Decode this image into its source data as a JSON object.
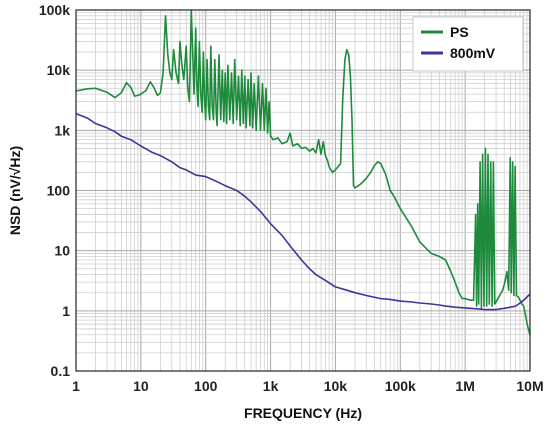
{
  "chart_data": {
    "type": "line",
    "title": "",
    "xlabel": "FREQUENCY (Hz)",
    "ylabel": "NSD (nV/√Hz)",
    "x_scale": "log",
    "y_scale": "log",
    "xlim": [
      1,
      10000000
    ],
    "ylim": [
      0.1,
      100000
    ],
    "x_ticks": [
      {
        "value": 1,
        "label": "1"
      },
      {
        "value": 10,
        "label": "10"
      },
      {
        "value": 100,
        "label": "100"
      },
      {
        "value": 1000,
        "label": "1k"
      },
      {
        "value": 10000,
        "label": "10k"
      },
      {
        "value": 100000,
        "label": "100k"
      },
      {
        "value": 1000000,
        "label": "1M"
      },
      {
        "value": 10000000,
        "label": "10M"
      }
    ],
    "y_ticks": [
      {
        "value": 0.1,
        "label": "0.1"
      },
      {
        "value": 1,
        "label": "1"
      },
      {
        "value": 10,
        "label": "10"
      },
      {
        "value": 100,
        "label": "100"
      },
      {
        "value": 1000,
        "label": "1k"
      },
      {
        "value": 10000,
        "label": "10k"
      },
      {
        "value": 100000,
        "label": "100k"
      }
    ],
    "grid": true,
    "legend_position": "top-right",
    "series": [
      {
        "name": "PS",
        "color": "#1e8a3c",
        "points": [
          [
            1,
            4500
          ],
          [
            1.5,
            4900
          ],
          [
            2,
            5000
          ],
          [
            3,
            4300
          ],
          [
            4,
            3500
          ],
          [
            5,
            4200
          ],
          [
            6,
            6200
          ],
          [
            7,
            5200
          ],
          [
            8,
            3700
          ],
          [
            9,
            3800
          ],
          [
            10,
            4000
          ],
          [
            12,
            4600
          ],
          [
            14,
            6400
          ],
          [
            16,
            5100
          ],
          [
            18,
            3800
          ],
          [
            20,
            4200
          ],
          [
            22,
            9000
          ],
          [
            24,
            80000
          ],
          [
            26,
            18000
          ],
          [
            28,
            9000
          ],
          [
            30,
            7000
          ],
          [
            32,
            22000
          ],
          [
            35,
            9000
          ],
          [
            38,
            6000
          ],
          [
            40,
            30000
          ],
          [
            43,
            12000
          ],
          [
            46,
            7000
          ],
          [
            50,
            25000
          ],
          [
            53,
            5000
          ],
          [
            56,
            3000
          ],
          [
            60,
            100000
          ],
          [
            63,
            20000
          ],
          [
            66,
            4000
          ],
          [
            70,
            50000
          ],
          [
            73,
            6000
          ],
          [
            76,
            2500
          ],
          [
            80,
            30000
          ],
          [
            84,
            4000
          ],
          [
            88,
            2000
          ],
          [
            92,
            20000
          ],
          [
            96,
            3000
          ],
          [
            100,
            1500
          ],
          [
            105,
            15000
          ],
          [
            110,
            2500
          ],
          [
            115,
            1500
          ],
          [
            120,
            25000
          ],
          [
            126,
            2500
          ],
          [
            132,
            1500
          ],
          [
            138,
            15000
          ],
          [
            145,
            2000
          ],
          [
            150,
            1200
          ],
          [
            160,
            18000
          ],
          [
            170,
            1500
          ],
          [
            180,
            10000
          ],
          [
            190,
            1400
          ],
          [
            200,
            9000
          ],
          [
            210,
            1300
          ],
          [
            220,
            12000
          ],
          [
            235,
            1500
          ],
          [
            250,
            9000
          ],
          [
            265,
            1300
          ],
          [
            280,
            15000
          ],
          [
            300,
            1500
          ],
          [
            320,
            8000
          ],
          [
            340,
            1200
          ],
          [
            360,
            10000
          ],
          [
            380,
            1300
          ],
          [
            400,
            8000
          ],
          [
            420,
            1100
          ],
          [
            450,
            7000
          ],
          [
            480,
            1200
          ],
          [
            500,
            9000
          ],
          [
            530,
            1100
          ],
          [
            560,
            6000
          ],
          [
            600,
            1000
          ],
          [
            650,
            8000
          ],
          [
            700,
            1000
          ],
          [
            750,
            6000
          ],
          [
            800,
            1000
          ],
          [
            850,
            5000
          ],
          [
            900,
            900
          ],
          [
            950,
            3000
          ],
          [
            1000,
            800
          ],
          [
            1100,
            700
          ],
          [
            1300,
            750
          ],
          [
            1500,
            600
          ],
          [
            1800,
            650
          ],
          [
            2000,
            900
          ],
          [
            2200,
            550
          ],
          [
            2600,
            600
          ],
          [
            3000,
            500
          ],
          [
            3500,
            520
          ],
          [
            4000,
            450
          ],
          [
            4500,
            500
          ],
          [
            5000,
            420
          ],
          [
            5500,
            700
          ],
          [
            6000,
            400
          ],
          [
            6500,
            650
          ],
          [
            7000,
            380
          ],
          [
            7500,
            320
          ],
          [
            8000,
            250
          ],
          [
            8500,
            220
          ],
          [
            9000,
            200
          ],
          [
            10000,
            220
          ],
          [
            11000,
            250
          ],
          [
            12000,
            280
          ],
          [
            13000,
            3500
          ],
          [
            14000,
            15000
          ],
          [
            15000,
            22000
          ],
          [
            16000,
            18000
          ],
          [
            17000,
            8000
          ],
          [
            18000,
            1500
          ],
          [
            19000,
            120
          ],
          [
            20000,
            110
          ],
          [
            25000,
            130
          ],
          [
            30000,
            160
          ],
          [
            35000,
            200
          ],
          [
            40000,
            260
          ],
          [
            45000,
            300
          ],
          [
            50000,
            280
          ],
          [
            60000,
            180
          ],
          [
            70000,
            100
          ],
          [
            80000,
            80
          ],
          [
            100000,
            50
          ],
          [
            150000,
            25
          ],
          [
            200000,
            14
          ],
          [
            300000,
            9
          ],
          [
            400000,
            8
          ],
          [
            500000,
            7
          ],
          [
            600000,
            4.5
          ],
          [
            700000,
            3
          ],
          [
            800000,
            2
          ],
          [
            900000,
            1.6
          ],
          [
            1000000,
            1.6
          ],
          [
            1200000,
            1.5
          ],
          [
            1350000,
            1.5
          ],
          [
            1450000,
            40
          ],
          [
            1500000,
            1.2
          ],
          [
            1560000,
            60
          ],
          [
            1620000,
            1.3
          ],
          [
            1700000,
            300
          ],
          [
            1780000,
            1.1
          ],
          [
            1860000,
            400
          ],
          [
            1950000,
            1.2
          ],
          [
            2050000,
            500
          ],
          [
            2150000,
            1.2
          ],
          [
            2250000,
            400
          ],
          [
            2360000,
            1.3
          ],
          [
            2480000,
            300
          ],
          [
            2600000,
            1.2
          ],
          [
            2730000,
            300
          ],
          [
            2860000,
            1.3
          ],
          [
            3000000,
            1.4
          ],
          [
            3200000,
            1.6
          ],
          [
            3500000,
            1.9
          ],
          [
            3800000,
            2.2
          ],
          [
            4100000,
            3
          ],
          [
            4400000,
            4.5
          ],
          [
            4700000,
            2.2
          ],
          [
            4950000,
            350
          ],
          [
            5150000,
            2
          ],
          [
            5400000,
            300
          ],
          [
            5650000,
            1.8
          ],
          [
            5900000,
            250
          ],
          [
            6200000,
            1.8
          ],
          [
            6600000,
            1.7
          ],
          [
            7000000,
            1.5
          ],
          [
            7500000,
            1.3
          ],
          [
            8000000,
            1.2
          ],
          [
            8600000,
            0.8
          ],
          [
            9200000,
            0.55
          ],
          [
            10000000,
            0.4
          ]
        ]
      },
      {
        "name": "800mV",
        "color": "#4a2f9c",
        "points": [
          [
            1,
            1900
          ],
          [
            1.5,
            1600
          ],
          [
            2,
            1300
          ],
          [
            3,
            1100
          ],
          [
            4,
            950
          ],
          [
            5,
            800
          ],
          [
            7,
            700
          ],
          [
            10,
            550
          ],
          [
            15,
            430
          ],
          [
            20,
            380
          ],
          [
            30,
            300
          ],
          [
            40,
            240
          ],
          [
            50,
            220
          ],
          [
            70,
            180
          ],
          [
            100,
            170
          ],
          [
            150,
            140
          ],
          [
            200,
            120
          ],
          [
            300,
            100
          ],
          [
            400,
            80
          ],
          [
            500,
            65
          ],
          [
            700,
            45
          ],
          [
            1000,
            28
          ],
          [
            1500,
            18
          ],
          [
            2000,
            12
          ],
          [
            3000,
            7
          ],
          [
            4000,
            5
          ],
          [
            5000,
            4
          ],
          [
            7000,
            3.2
          ],
          [
            10000,
            2.5
          ],
          [
            15000,
            2.2
          ],
          [
            20000,
            2
          ],
          [
            30000,
            1.8
          ],
          [
            50000,
            1.6
          ],
          [
            70000,
            1.55
          ],
          [
            100000,
            1.45
          ],
          [
            150000,
            1.4
          ],
          [
            200000,
            1.35
          ],
          [
            300000,
            1.3
          ],
          [
            400000,
            1.25
          ],
          [
            500000,
            1.2
          ],
          [
            700000,
            1.15
          ],
          [
            1000000,
            1.12
          ],
          [
            1500000,
            1.08
          ],
          [
            2000000,
            1.05
          ],
          [
            3000000,
            1.05
          ],
          [
            4000000,
            1.1
          ],
          [
            5000000,
            1.15
          ],
          [
            6000000,
            1.2
          ],
          [
            7000000,
            1.35
          ],
          [
            8000000,
            1.5
          ],
          [
            9000000,
            1.7
          ],
          [
            10000000,
            1.9
          ]
        ]
      }
    ]
  }
}
